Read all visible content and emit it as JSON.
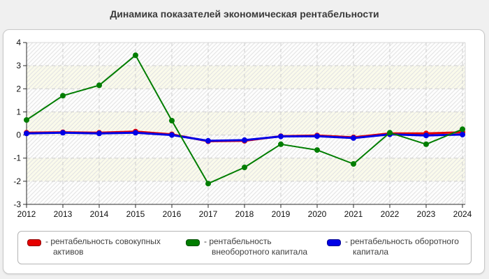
{
  "title": "Динамика показателей экономическая рентабельности",
  "legend": {
    "items": [
      {
        "label": "- рентабельность совокупных\nактивов",
        "series_name": "рентабельность совокупных активов",
        "color": "#e60000",
        "border_color": "#8f0000"
      },
      {
        "label": "- рентабельность\nвнеоборотного капитала",
        "series_name": "рентабельность внеоборотного капитала",
        "color": "#007d00",
        "border_color": "#004d00"
      },
      {
        "label": "- рентабельность оборотного\nкапитала",
        "series_name": "рентабельность оборотного капитала",
        "color": "#0000e6",
        "border_color": "#000091"
      }
    ]
  },
  "chart_data": {
    "type": "line",
    "title": "Динамика показателей экономическая рентабельности",
    "categories": [
      "2012",
      "2013",
      "2014",
      "2015",
      "2016",
      "2017",
      "2018",
      "2019",
      "2020",
      "2021",
      "2022",
      "2023",
      "2024"
    ],
    "xlabel": "",
    "ylabel": "",
    "ylim": [
      -3,
      4
    ],
    "ytick_step": 1,
    "grid": "dashed",
    "legend_position": "bottom",
    "plot_band_colors": [
      "#fdfdfd",
      "#fafaeb"
    ],
    "series": [
      {
        "name": "рентабельность совокупных активов",
        "color": "#e60000",
        "values": [
          0.1,
          0.12,
          0.1,
          0.15,
          0.03,
          -0.27,
          -0.25,
          -0.05,
          -0.02,
          -0.1,
          0.07,
          0.07,
          0.12
        ]
      },
      {
        "name": "рентабельность внеоборотного капитала",
        "color": "#007d00",
        "values": [
          0.65,
          1.7,
          2.15,
          3.45,
          0.62,
          -2.1,
          -1.4,
          -0.4,
          -0.65,
          -1.25,
          0.1,
          -0.4,
          0.25
        ]
      },
      {
        "name": "рентабельность оборотного капитала",
        "color": "#0000e6",
        "values": [
          0.07,
          0.1,
          0.07,
          0.1,
          0.0,
          -0.25,
          -0.22,
          -0.06,
          -0.05,
          -0.13,
          0.03,
          -0.02,
          0.02
        ]
      }
    ]
  }
}
